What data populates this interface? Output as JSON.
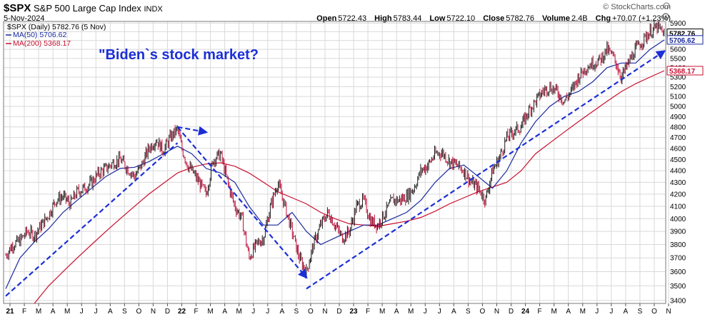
{
  "header": {
    "symbol": "$SPX",
    "name": "S&P 500 Large Cap Index",
    "exchange": "INDX",
    "date": "5-Nov-2024",
    "brand": "© StockCharts.com",
    "open_label": "Open",
    "open": "5722.43",
    "high_label": "High",
    "high": "5783.44",
    "low_label": "Low",
    "low": "5722.10",
    "close_label": "Close",
    "close": "5782.76",
    "volume_label": "Volume",
    "volume": "2.4B",
    "chg_label": "Chg",
    "chg": "+70.07 (+1.23%)"
  },
  "legend": {
    "series_label": "$SPX (Daily) 5782.76 (5 Nov)",
    "ma50_label": "MA(50) 5706.62",
    "ma200_label": "MA(200) 5368.17"
  },
  "annotation": "\"Biden`s stock market?",
  "badges": {
    "close": "5782.76",
    "ma50": "5706.62",
    "ma200": "5368.17"
  },
  "colors": {
    "price": "#1a1a1a",
    "down": "#c0103a",
    "ma50": "#1a2a9e",
    "ma200": "#c8102e",
    "trend": "#1c2fd6",
    "grid": "#d9d9d9",
    "annotation": "#1c2fd6"
  },
  "chart_data": {
    "type": "line",
    "title": "$SPX S&P 500 Large Cap Index INDX",
    "xlabel": "",
    "ylabel": "",
    "y_scale": "log",
    "ylim": [
      3380,
      5920
    ],
    "y_ticks": [
      3400,
      3500,
      3600,
      3700,
      3800,
      3900,
      4000,
      4100,
      4200,
      4300,
      4400,
      4500,
      4600,
      4700,
      4800,
      4900,
      5000,
      5100,
      5200,
      5300,
      5400,
      5500,
      5600,
      5700,
      5800,
      5900
    ],
    "x_ticks": [
      {
        "label": "21",
        "m": 0
      },
      {
        "label": "F",
        "m": 1
      },
      {
        "label": "M",
        "m": 2
      },
      {
        "label": "A",
        "m": 3
      },
      {
        "label": "M",
        "m": 4
      },
      {
        "label": "J",
        "m": 5
      },
      {
        "label": "J",
        "m": 6
      },
      {
        "label": "A",
        "m": 7
      },
      {
        "label": "S",
        "m": 8
      },
      {
        "label": "O",
        "m": 9
      },
      {
        "label": "N",
        "m": 10
      },
      {
        "label": "D",
        "m": 11
      },
      {
        "label": "22",
        "m": 12
      },
      {
        "label": "F",
        "m": 13
      },
      {
        "label": "M",
        "m": 14
      },
      {
        "label": "A",
        "m": 15
      },
      {
        "label": "M",
        "m": 16
      },
      {
        "label": "J",
        "m": 17
      },
      {
        "label": "J",
        "m": 18
      },
      {
        "label": "A",
        "m": 19
      },
      {
        "label": "S",
        "m": 20
      },
      {
        "label": "O",
        "m": 21
      },
      {
        "label": "N",
        "m": 22
      },
      {
        "label": "D",
        "m": 23
      },
      {
        "label": "23",
        "m": 24
      },
      {
        "label": "F",
        "m": 25
      },
      {
        "label": "M",
        "m": 26
      },
      {
        "label": "A",
        "m": 27
      },
      {
        "label": "M",
        "m": 28
      },
      {
        "label": "J",
        "m": 29
      },
      {
        "label": "J",
        "m": 30
      },
      {
        "label": "A",
        "m": 31
      },
      {
        "label": "S",
        "m": 32
      },
      {
        "label": "O",
        "m": 33
      },
      {
        "label": "N",
        "m": 34
      },
      {
        "label": "D",
        "m": 35
      },
      {
        "label": "24",
        "m": 36
      },
      {
        "label": "F",
        "m": 37
      },
      {
        "label": "M",
        "m": 38
      },
      {
        "label": "A",
        "m": 39
      },
      {
        "label": "M",
        "m": 40
      },
      {
        "label": "J",
        "m": 41
      },
      {
        "label": "J",
        "m": 42
      },
      {
        "label": "A",
        "m": 43
      },
      {
        "label": "S",
        "m": 44
      },
      {
        "label": "O",
        "m": 45
      },
      {
        "label": "N",
        "m": 46
      }
    ],
    "series": [
      {
        "name": "$SPX (Daily)",
        "points": [
          [
            0,
            3720
          ],
          [
            0.5,
            3800
          ],
          [
            1,
            3830
          ],
          [
            1.5,
            3900
          ],
          [
            2,
            3870
          ],
          [
            2.5,
            3950
          ],
          [
            3,
            4030
          ],
          [
            3.5,
            4150
          ],
          [
            4,
            4180
          ],
          [
            4.5,
            4120
          ],
          [
            5,
            4220
          ],
          [
            5.5,
            4250
          ],
          [
            6,
            4300
          ],
          [
            6.5,
            4380
          ],
          [
            7,
            4420
          ],
          [
            7.5,
            4470
          ],
          [
            8,
            4500
          ],
          [
            8.5,
            4420
          ],
          [
            9,
            4350
          ],
          [
            9.5,
            4450
          ],
          [
            10,
            4600
          ],
          [
            10.5,
            4680
          ],
          [
            11,
            4580
          ],
          [
            11.5,
            4700
          ],
          [
            12,
            4780
          ],
          [
            12.3,
            4600
          ],
          [
            12.7,
            4450
          ],
          [
            13,
            4400
          ],
          [
            13.5,
            4300
          ],
          [
            14,
            4200
          ],
          [
            14.5,
            4500
          ],
          [
            15,
            4550
          ],
          [
            15.5,
            4300
          ],
          [
            16,
            4100
          ],
          [
            16.5,
            4000
          ],
          [
            17,
            3700
          ],
          [
            17.5,
            3800
          ],
          [
            18,
            3850
          ],
          [
            18.5,
            4100
          ],
          [
            19,
            4300
          ],
          [
            19.5,
            4100
          ],
          [
            20,
            3900
          ],
          [
            20.5,
            3700
          ],
          [
            21,
            3600
          ],
          [
            21.5,
            3800
          ],
          [
            22,
            3950
          ],
          [
            22.5,
            4050
          ],
          [
            23,
            3950
          ],
          [
            23.5,
            3850
          ],
          [
            24,
            3900
          ],
          [
            24.5,
            4100
          ],
          [
            25,
            4150
          ],
          [
            25.5,
            3980
          ],
          [
            26,
            3950
          ],
          [
            26.5,
            4050
          ],
          [
            27,
            4150
          ],
          [
            27.5,
            4150
          ],
          [
            28,
            4180
          ],
          [
            28.5,
            4250
          ],
          [
            29,
            4400
          ],
          [
            29.5,
            4450
          ],
          [
            30,
            4550
          ],
          [
            30.5,
            4560
          ],
          [
            31,
            4480
          ],
          [
            31.5,
            4450
          ],
          [
            32,
            4400
          ],
          [
            32.5,
            4300
          ],
          [
            33,
            4250
          ],
          [
            33.5,
            4150
          ],
          [
            34,
            4400
          ],
          [
            34.5,
            4520
          ],
          [
            35,
            4700
          ],
          [
            35.5,
            4760
          ],
          [
            36,
            4800
          ],
          [
            36.5,
            4950
          ],
          [
            37,
            5050
          ],
          [
            37.5,
            5150
          ],
          [
            38,
            5200
          ],
          [
            38.5,
            5150
          ],
          [
            39,
            5050
          ],
          [
            39.5,
            5150
          ],
          [
            40,
            5300
          ],
          [
            40.5,
            5400
          ],
          [
            41,
            5450
          ],
          [
            41.5,
            5480
          ],
          [
            42,
            5600
          ],
          [
            42.5,
            5500
          ],
          [
            43,
            5300
          ],
          [
            43.5,
            5450
          ],
          [
            44,
            5600
          ],
          [
            44.5,
            5700
          ],
          [
            45,
            5800
          ],
          [
            45.5,
            5850
          ],
          [
            46,
            5782
          ]
        ]
      },
      {
        "name": "MA(50)",
        "points": [
          [
            0,
            3480
          ],
          [
            1,
            3700
          ],
          [
            2,
            3820
          ],
          [
            3,
            3920
          ],
          [
            4,
            4050
          ],
          [
            5,
            4150
          ],
          [
            6,
            4250
          ],
          [
            7,
            4350
          ],
          [
            8,
            4420
          ],
          [
            9,
            4430
          ],
          [
            10,
            4480
          ],
          [
            11,
            4550
          ],
          [
            12,
            4620
          ],
          [
            13,
            4550
          ],
          [
            14,
            4420
          ],
          [
            15,
            4380
          ],
          [
            16,
            4300
          ],
          [
            17,
            4100
          ],
          [
            18,
            3950
          ],
          [
            19,
            3950
          ],
          [
            20,
            4050
          ],
          [
            21,
            3900
          ],
          [
            22,
            3800
          ],
          [
            23,
            3850
          ],
          [
            24,
            3900
          ],
          [
            25,
            3950
          ],
          [
            26,
            3950
          ],
          [
            27,
            4000
          ],
          [
            28,
            4050
          ],
          [
            29,
            4150
          ],
          [
            30,
            4300
          ],
          [
            31,
            4420
          ],
          [
            32,
            4450
          ],
          [
            33,
            4350
          ],
          [
            34,
            4250
          ],
          [
            35,
            4400
          ],
          [
            36,
            4650
          ],
          [
            37,
            4850
          ],
          [
            38,
            5000
          ],
          [
            39,
            5100
          ],
          [
            40,
            5150
          ],
          [
            41,
            5250
          ],
          [
            42,
            5400
          ],
          [
            43,
            5450
          ],
          [
            44,
            5450
          ],
          [
            45,
            5600
          ],
          [
            46,
            5706
          ]
        ]
      },
      {
        "name": "MA(200)",
        "points": [
          [
            2,
            3380
          ],
          [
            3,
            3500
          ],
          [
            4,
            3600
          ],
          [
            5,
            3700
          ],
          [
            6,
            3800
          ],
          [
            7,
            3900
          ],
          [
            8,
            4000
          ],
          [
            9,
            4100
          ],
          [
            10,
            4200
          ],
          [
            11,
            4290
          ],
          [
            12,
            4380
          ],
          [
            13,
            4430
          ],
          [
            14,
            4460
          ],
          [
            15,
            4470
          ],
          [
            16,
            4440
          ],
          [
            17,
            4380
          ],
          [
            18,
            4300
          ],
          [
            19,
            4220
          ],
          [
            20,
            4170
          ],
          [
            21,
            4120
          ],
          [
            22,
            4050
          ],
          [
            23,
            4000
          ],
          [
            24,
            3960
          ],
          [
            25,
            3950
          ],
          [
            26,
            3940
          ],
          [
            27,
            3960
          ],
          [
            28,
            3980
          ],
          [
            29,
            4010
          ],
          [
            30,
            4060
          ],
          [
            31,
            4120
          ],
          [
            32,
            4170
          ],
          [
            33,
            4220
          ],
          [
            34,
            4260
          ],
          [
            35,
            4300
          ],
          [
            36,
            4400
          ],
          [
            37,
            4550
          ],
          [
            38,
            4650
          ],
          [
            39,
            4750
          ],
          [
            40,
            4850
          ],
          [
            41,
            4950
          ],
          [
            42,
            5050
          ],
          [
            43,
            5150
          ],
          [
            44,
            5230
          ],
          [
            45,
            5300
          ],
          [
            46,
            5368
          ]
        ]
      }
    ],
    "trendlines": [
      {
        "from": [
          0,
          3430
        ],
        "to": [
          12,
          4650
        ],
        "arrow": false
      },
      {
        "from": [
          12,
          4800
        ],
        "to": [
          14,
          4750
        ],
        "arrow": true
      },
      {
        "from": [
          12,
          4800
        ],
        "to": [
          21,
          3560
        ],
        "arrow": true
      },
      {
        "from": [
          21,
          3480
        ],
        "to": [
          46,
          5580
        ],
        "arrow": true
      }
    ]
  }
}
